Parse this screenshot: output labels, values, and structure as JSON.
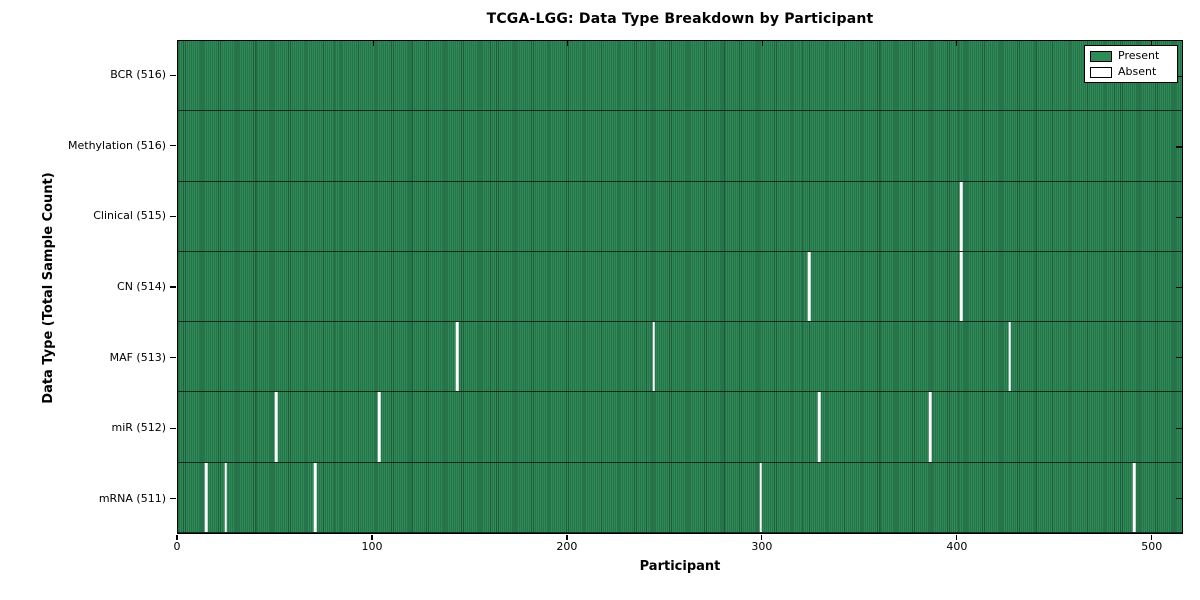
{
  "chart_data": {
    "type": "heatmap",
    "title": "TCGA-LGG: Data Type Breakdown by Participant",
    "xlabel": "Participant",
    "ylabel": "Data Type (Total Sample Count)",
    "xlim": [
      0,
      516
    ],
    "n_participants": 516,
    "x_ticks": [
      0,
      100,
      200,
      300,
      400,
      500
    ],
    "grid": false,
    "present_color": "#2e8b57",
    "absent_color": "#ffffff",
    "rows": [
      {
        "label": "BCR (516)",
        "data_type": "BCR",
        "present_count": 516,
        "absent_participants": []
      },
      {
        "label": "Methylation (516)",
        "data_type": "Methylation",
        "present_count": 516,
        "absent_participants": []
      },
      {
        "label": "Clinical (515)",
        "data_type": "Clinical",
        "present_count": 515,
        "absent_participants": [
          402
        ]
      },
      {
        "label": "CN (514)",
        "data_type": "CN",
        "present_count": 514,
        "absent_participants": [
          324,
          402
        ]
      },
      {
        "label": "MAF (513)",
        "data_type": "MAF",
        "present_count": 513,
        "absent_participants": [
          143,
          244,
          427
        ]
      },
      {
        "label": "miR (512)",
        "data_type": "miR",
        "present_count": 512,
        "absent_participants": [
          50,
          103,
          329,
          386
        ]
      },
      {
        "label": "mRNA (511)",
        "data_type": "mRNA",
        "present_count": 511,
        "absent_participants": [
          14,
          24,
          70,
          299,
          491
        ]
      }
    ],
    "legend": {
      "position": "upper right",
      "entries": [
        {
          "label": "Present",
          "color": "#2e8b57"
        },
        {
          "label": "Absent",
          "color": "#ffffff"
        }
      ]
    }
  }
}
